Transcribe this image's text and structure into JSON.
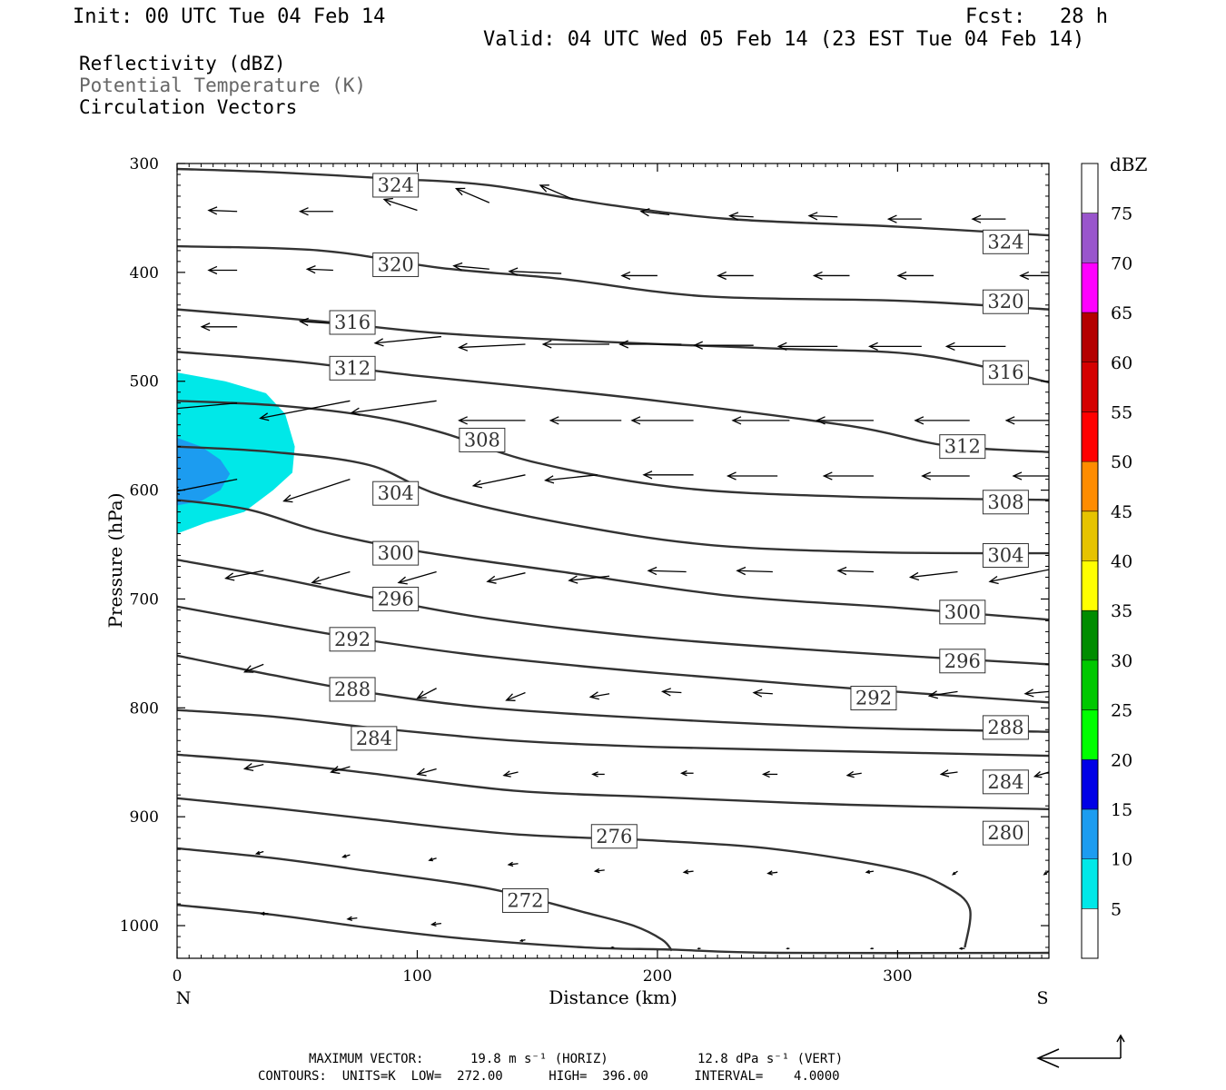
{
  "header": {
    "init": "Init: 00 UTC Tue 04 Feb 14",
    "fcst_label": "Fcst:",
    "fcst_value": "28 h",
    "valid": "Valid: 04 UTC Wed 05 Feb 14 (23 EST Tue 04 Feb 14)"
  },
  "fields": [
    {
      "label": "Reflectivity (dBZ)",
      "color": "#000000"
    },
    {
      "label": "Potential Temperature (K)",
      "color": "#666666"
    },
    {
      "label": "Circulation Vectors",
      "color": "#000000"
    }
  ],
  "chart_data": {
    "type": "contour",
    "xlabel": "Distance (km)",
    "ylabel": "Pressure (hPa)",
    "xlim": [
      0,
      363
    ],
    "ylim": [
      300,
      1030
    ],
    "xticks": [
      "0",
      "100",
      "200",
      "300"
    ],
    "yticks": [
      "300",
      "400",
      "500",
      "600",
      "700",
      "800",
      "900",
      "1000"
    ],
    "x_end_labels": {
      "left": "N",
      "right": "S"
    },
    "contour_lines": [
      {
        "level": 324,
        "points": [
          [
            0,
            305
          ],
          [
            40,
            308
          ],
          [
            90,
            314
          ],
          [
            130,
            320
          ],
          [
            180,
            338
          ],
          [
            230,
            351
          ],
          [
            300,
            358
          ],
          [
            363,
            366
          ]
        ],
        "labels": [
          [
            91,
            320
          ],
          [
            345,
            372
          ]
        ]
      },
      {
        "level": 320,
        "points": [
          [
            0,
            376
          ],
          [
            60,
            380
          ],
          [
            110,
            396
          ],
          [
            160,
            406
          ],
          [
            220,
            422
          ],
          [
            300,
            426
          ],
          [
            363,
            434
          ]
        ],
        "labels": [
          [
            91,
            393
          ],
          [
            345,
            427
          ]
        ]
      },
      {
        "level": 316,
        "points": [
          [
            0,
            434
          ],
          [
            60,
            445
          ],
          [
            110,
            456
          ],
          [
            180,
            464
          ],
          [
            250,
            470
          ],
          [
            310,
            476
          ],
          [
            363,
            501
          ]
        ],
        "labels": [
          [
            73,
            446
          ],
          [
            345,
            492
          ]
        ]
      },
      {
        "level": 312,
        "points": [
          [
            0,
            473
          ],
          [
            50,
            482
          ],
          [
            100,
            495
          ],
          [
            150,
            506
          ],
          [
            200,
            518
          ],
          [
            280,
            541
          ],
          [
            320,
            559
          ],
          [
            363,
            565
          ]
        ],
        "labels": [
          [
            73,
            488
          ],
          [
            327,
            560
          ]
        ]
      },
      {
        "level": 308,
        "points": [
          [
            0,
            518
          ],
          [
            40,
            522
          ],
          [
            80,
            532
          ],
          [
            110,
            547
          ],
          [
            150,
            575
          ],
          [
            210,
            598
          ],
          [
            280,
            606
          ],
          [
            363,
            609
          ]
        ],
        "labels": [
          [
            127,
            554
          ],
          [
            345,
            611
          ]
        ]
      },
      {
        "level": 304,
        "points": [
          [
            0,
            560
          ],
          [
            40,
            565
          ],
          [
            80,
            577
          ],
          [
            110,
            605
          ],
          [
            160,
            630
          ],
          [
            220,
            650
          ],
          [
            290,
            657
          ],
          [
            363,
            658
          ]
        ],
        "labels": [
          [
            91,
            603
          ],
          [
            345,
            660
          ]
        ]
      },
      {
        "level": 300,
        "points": [
          [
            0,
            609
          ],
          [
            30,
            618
          ],
          [
            60,
            638
          ],
          [
            100,
            656
          ],
          [
            160,
            675
          ],
          [
            230,
            697
          ],
          [
            300,
            708
          ],
          [
            363,
            719
          ]
        ],
        "labels": [
          [
            91,
            658
          ],
          [
            327,
            712
          ]
        ]
      },
      {
        "level": 296,
        "points": [
          [
            0,
            664
          ],
          [
            40,
            680
          ],
          [
            80,
            698
          ],
          [
            130,
            718
          ],
          [
            200,
            736
          ],
          [
            280,
            749
          ],
          [
            363,
            760
          ]
        ],
        "labels": [
          [
            91,
            700
          ],
          [
            327,
            757
          ]
        ]
      },
      {
        "level": 292,
        "points": [
          [
            0,
            707
          ],
          [
            40,
            723
          ],
          [
            80,
            738
          ],
          [
            130,
            753
          ],
          [
            200,
            768
          ],
          [
            280,
            782
          ],
          [
            363,
            795
          ]
        ],
        "labels": [
          [
            73,
            737
          ],
          [
            290,
            791
          ]
        ]
      },
      {
        "level": 288,
        "points": [
          [
            0,
            752
          ],
          [
            40,
            770
          ],
          [
            80,
            786
          ],
          [
            130,
            800
          ],
          [
            200,
            810
          ],
          [
            280,
            818
          ],
          [
            363,
            822
          ]
        ],
        "labels": [
          [
            73,
            783
          ],
          [
            345,
            818
          ]
        ]
      },
      {
        "level": 284,
        "points": [
          [
            0,
            802
          ],
          [
            40,
            808
          ],
          [
            80,
            818
          ],
          [
            140,
            830
          ],
          [
            200,
            836
          ],
          [
            280,
            840
          ],
          [
            363,
            844
          ]
        ],
        "labels": [
          [
            82,
            828
          ],
          [
            345,
            868
          ]
        ]
      },
      {
        "level": 280,
        "points": [
          [
            0,
            843
          ],
          [
            40,
            850
          ],
          [
            80,
            860
          ],
          [
            140,
            876
          ],
          [
            200,
            882
          ],
          [
            280,
            889
          ],
          [
            363,
            893
          ]
        ],
        "labels": [
          [
            345,
            915
          ]
        ]
      },
      {
        "level": 276,
        "points": [
          [
            0,
            883
          ],
          [
            40,
            892
          ],
          [
            80,
            902
          ],
          [
            140,
            916
          ],
          [
            200,
            922
          ],
          [
            250,
            930
          ],
          [
            300,
            948
          ],
          [
            320,
            964
          ],
          [
            330,
            984
          ],
          [
            328,
            1020
          ]
        ],
        "labels": [
          [
            182,
            918
          ]
        ]
      },
      {
        "level": 272,
        "points": [
          [
            0,
            929
          ],
          [
            40,
            938
          ],
          [
            80,
            950
          ],
          [
            130,
            966
          ],
          [
            170,
            988
          ],
          [
            190,
            1000
          ],
          [
            202,
            1013
          ],
          [
            206,
            1023
          ]
        ],
        "labels": [
          [
            145,
            977
          ]
        ]
      },
      {
        "level": 268,
        "points": [
          [
            0,
            981
          ],
          [
            40,
            990
          ],
          [
            80,
            1002
          ],
          [
            120,
            1012
          ],
          [
            170,
            1020
          ],
          [
            206,
            1022
          ],
          [
            250,
            1025
          ],
          [
            363,
            1025
          ]
        ],
        "labels": []
      }
    ],
    "reflectivity": [
      {
        "dbz": 5,
        "color": "#00e8e8",
        "polygon": [
          [
            0,
            492
          ],
          [
            20,
            500
          ],
          [
            37,
            511
          ],
          [
            45,
            530
          ],
          [
            49,
            560
          ],
          [
            48,
            584
          ],
          [
            40,
            600
          ],
          [
            28,
            620
          ],
          [
            12,
            630
          ],
          [
            0,
            640
          ]
        ]
      },
      {
        "dbz": 10,
        "color": "#1c9cf0",
        "polygon": [
          [
            0,
            552
          ],
          [
            10,
            560
          ],
          [
            18,
            572
          ],
          [
            22,
            585
          ],
          [
            18,
            600
          ],
          [
            10,
            610
          ],
          [
            0,
            614
          ]
        ]
      }
    ],
    "vectors": [
      [
        25,
        344,
        -12,
        -1
      ],
      [
        65,
        344,
        -14,
        0
      ],
      [
        100,
        343,
        -14,
        -10
      ],
      [
        130,
        336,
        -14,
        -13
      ],
      [
        165,
        333,
        -14,
        -13
      ],
      [
        205,
        347,
        -12,
        -3
      ],
      [
        240,
        349,
        -10,
        -1
      ],
      [
        275,
        349,
        -12,
        -1
      ],
      [
        310,
        351,
        -14,
        0
      ],
      [
        345,
        351,
        -14,
        0
      ],
      [
        25,
        398,
        -12,
        0
      ],
      [
        65,
        398,
        -11,
        -1
      ],
      [
        100,
        398,
        -16,
        -3
      ],
      [
        130,
        397,
        -15,
        -3
      ],
      [
        160,
        401,
        -22,
        -2
      ],
      [
        200,
        403,
        -15,
        0
      ],
      [
        240,
        403,
        -15,
        0
      ],
      [
        280,
        403,
        -15,
        0
      ],
      [
        315,
        403,
        -15,
        0
      ],
      [
        363,
        403,
        -12,
        0
      ],
      [
        25,
        450,
        -15,
        0
      ],
      [
        65,
        447,
        -14,
        -2
      ],
      [
        110,
        459,
        -28,
        6
      ],
      [
        145,
        466,
        -28,
        3
      ],
      [
        180,
        466,
        -28,
        0
      ],
      [
        210,
        466,
        -26,
        0
      ],
      [
        240,
        467,
        -25,
        0
      ],
      [
        275,
        468,
        -25,
        0
      ],
      [
        310,
        468,
        -22,
        0
      ],
      [
        345,
        468,
        -25,
        0
      ],
      [
        25,
        520,
        -31,
        6
      ],
      [
        72,
        518,
        -38,
        16
      ],
      [
        108,
        518,
        -36,
        11
      ],
      [
        145,
        536,
        -28,
        0
      ],
      [
        185,
        536,
        -30,
        0
      ],
      [
        215,
        536,
        -26,
        0
      ],
      [
        255,
        536,
        -24,
        0
      ],
      [
        290,
        536,
        -24,
        0
      ],
      [
        330,
        536,
        -23,
        0
      ],
      [
        363,
        536,
        -18,
        0
      ],
      [
        25,
        590,
        -28,
        12
      ],
      [
        72,
        590,
        -28,
        20
      ],
      [
        145,
        586,
        -22,
        10
      ],
      [
        175,
        586,
        -22,
        5
      ],
      [
        215,
        586,
        -21,
        0
      ],
      [
        250,
        587,
        -21,
        0
      ],
      [
        290,
        587,
        -21,
        0
      ],
      [
        330,
        587,
        -20,
        0
      ],
      [
        363,
        587,
        -15,
        0
      ],
      [
        36,
        674,
        -16,
        7
      ],
      [
        72,
        675,
        -16,
        10
      ],
      [
        108,
        675,
        -16,
        10
      ],
      [
        145,
        676,
        -16,
        8
      ],
      [
        180,
        679,
        -17,
        4
      ],
      [
        212,
        675,
        -16,
        -1
      ],
      [
        248,
        675,
        -15,
        -1
      ],
      [
        290,
        675,
        -15,
        -1
      ],
      [
        325,
        675,
        -20,
        5
      ],
      [
        363,
        673,
        -25,
        11
      ],
      [
        36,
        760,
        -8,
        7
      ],
      [
        72,
        779,
        -8,
        9
      ],
      [
        108,
        782,
        -8,
        9
      ],
      [
        145,
        786,
        -8,
        7
      ],
      [
        180,
        787,
        -8,
        3
      ],
      [
        210,
        786,
        -8,
        -1
      ],
      [
        248,
        787,
        -8,
        -1
      ],
      [
        292,
        789,
        -8,
        -1
      ],
      [
        325,
        785,
        -12,
        4
      ],
      [
        363,
        785,
        -10,
        2
      ],
      [
        36,
        852,
        -8,
        4
      ],
      [
        72,
        854,
        -8,
        5
      ],
      [
        108,
        856,
        -8,
        5
      ],
      [
        142,
        859,
        -6,
        3
      ],
      [
        178,
        861,
        -5,
        0
      ],
      [
        215,
        860,
        -5,
        0
      ],
      [
        250,
        861,
        -6,
        0
      ],
      [
        285,
        860,
        -6,
        2
      ],
      [
        325,
        859,
        -7,
        2
      ],
      [
        363,
        859,
        -6,
        4
      ],
      [
        36,
        932,
        -3,
        2
      ],
      [
        72,
        935,
        -3,
        2
      ],
      [
        108,
        938,
        -3,
        2
      ],
      [
        142,
        943,
        -4,
        1
      ],
      [
        178,
        949,
        -4,
        1
      ],
      [
        215,
        950,
        -4,
        1
      ],
      [
        250,
        951,
        -4,
        1
      ],
      [
        290,
        950,
        -3,
        1
      ],
      [
        325,
        950,
        -2,
        3
      ],
      [
        363,
        950,
        -2,
        3
      ],
      [
        38,
        989,
        -3,
        0
      ],
      [
        75,
        993,
        -4,
        1
      ],
      [
        110,
        998,
        -4,
        1
      ],
      [
        145,
        1013,
        -2,
        1
      ],
      [
        182,
        1020,
        -1,
        0
      ],
      [
        218,
        1021,
        -1,
        0
      ],
      [
        255,
        1021,
        -1,
        0
      ],
      [
        290,
        1021,
        -1,
        0
      ],
      [
        328,
        1021,
        -2,
        0
      ]
    ],
    "colorbar": {
      "title": "dBZ",
      "levels": [
        "5",
        "10",
        "15",
        "20",
        "25",
        "30",
        "35",
        "40",
        "45",
        "50",
        "55",
        "60",
        "65",
        "70",
        "75"
      ],
      "colors": [
        "#ffffff",
        "#00e8e8",
        "#1c9cf0",
        "#0000e6",
        "#00ff00",
        "#00c800",
        "#008c00",
        "#ffff00",
        "#e6c300",
        "#ff8c00",
        "#ff0000",
        "#d40000",
        "#b40000",
        "#ff00ff",
        "#9955cc",
        "#ffffff"
      ]
    }
  },
  "footer": {
    "max_vector_label": "MAXIMUM VECTOR:",
    "max_vector_horiz": "19.8 m s⁻¹ (HORIZ)",
    "max_vector_vert": "12.8 dPa s⁻¹ (VERT)",
    "contours_line": "CONTOURS:  UNITS=K  LOW=  272.00      HIGH=  396.00      INTERVAL=    4.0000"
  }
}
